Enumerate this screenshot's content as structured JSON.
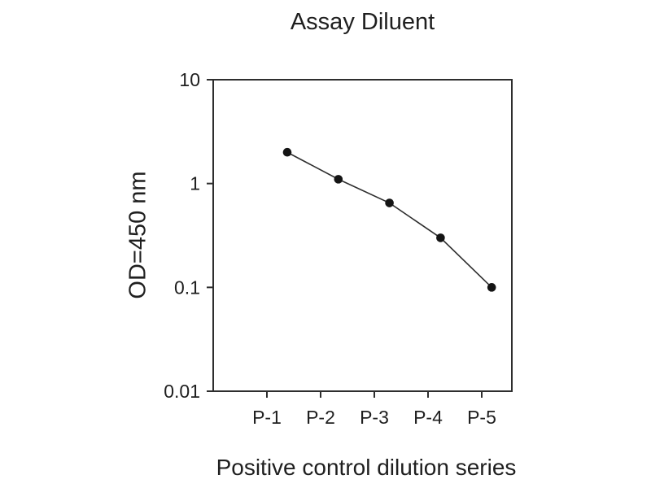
{
  "chart_data": {
    "type": "line",
    "title": "Assay Diluent",
    "xlabel": "Positive control dilution series",
    "ylabel": "OD=450 nm",
    "categories": [
      "P-1",
      "P-2",
      "P-3",
      "P-4",
      "P-5"
    ],
    "values": [
      2.0,
      1.1,
      0.65,
      0.3,
      0.1
    ],
    "y_scale": "log",
    "ylim": [
      0.01,
      10
    ],
    "y_tick_labels": [
      "10",
      "1",
      "0.1",
      "0.01"
    ],
    "y_tick_values": [
      10,
      1,
      0.1,
      0.01
    ],
    "x_ticks_outward": true,
    "grid": false,
    "legend": "none",
    "marker": "filled-circle",
    "colors": {
      "background": "#ffffff",
      "text": "#1f1f1f",
      "axis": "#2e2e2e",
      "line": "#2e2e2e",
      "marker": "#141414"
    }
  }
}
